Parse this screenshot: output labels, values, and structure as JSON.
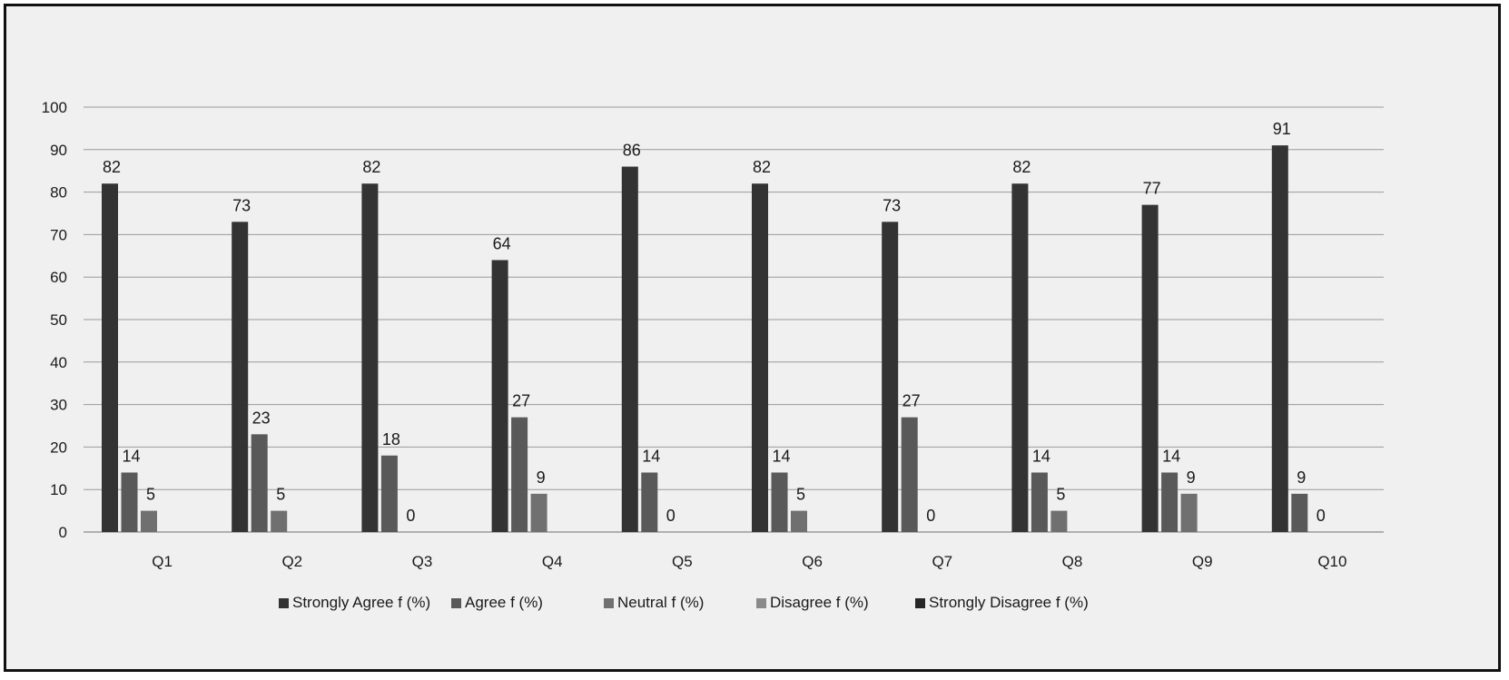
{
  "chart_data": {
    "type": "bar",
    "categories": [
      "Q1",
      "Q2",
      "Q3",
      "Q4",
      "Q5",
      "Q6",
      "Q7",
      "Q8",
      "Q9",
      "Q10"
    ],
    "series": [
      {
        "name": "Strongly Agree f (%)",
        "color": "#333333",
        "values": [
          82,
          73,
          82,
          64,
          86,
          82,
          73,
          82,
          77,
          91
        ]
      },
      {
        "name": "Agree f (%)",
        "color": "#595959",
        "values": [
          14,
          23,
          18,
          27,
          14,
          14,
          27,
          14,
          14,
          9
        ]
      },
      {
        "name": "Neutral f (%)",
        "color": "#707070",
        "values": [
          5,
          5,
          0,
          9,
          0,
          5,
          0,
          5,
          9,
          0
        ]
      },
      {
        "name": "Disagree f (%)",
        "color": "#8a8a8a",
        "values": [
          null,
          null,
          null,
          null,
          null,
          null,
          null,
          null,
          null,
          null
        ]
      },
      {
        "name": "Strongly Disagree f (%)",
        "color": "#262626",
        "values": [
          null,
          null,
          null,
          null,
          null,
          null,
          null,
          null,
          null,
          null
        ]
      }
    ],
    "ylim": [
      0,
      100
    ],
    "yticks": [
      "0",
      "10",
      "20",
      "30",
      "40",
      "50",
      "60",
      "70",
      "80",
      "90",
      "100"
    ],
    "grid": true,
    "legend_position": "bottom"
  }
}
